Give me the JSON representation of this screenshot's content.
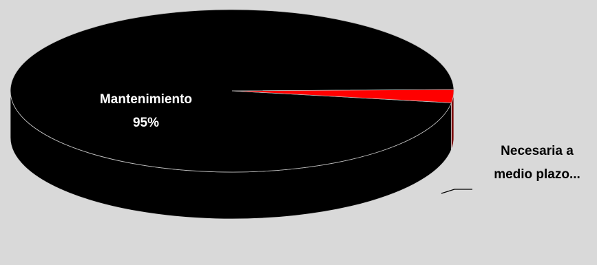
{
  "chart_data": {
    "type": "pie",
    "style": "3d",
    "title": "",
    "series": [
      {
        "values": [
          95,
          5
        ],
        "categories": [
          "Mantenimiento",
          "Necesaria a medio plazo"
        ]
      }
    ],
    "slices": [
      {
        "label": "Mantenimiento",
        "value_label": "95%",
        "value": 95,
        "color": "#000000",
        "side_color": "#000000"
      },
      {
        "label_lines": [
          "Necesaria a",
          "medio plazo..."
        ],
        "value": 5,
        "color": "#ff0000",
        "side_color": "#7a0000"
      }
    ],
    "legend": "none",
    "background": "#d9d9d9"
  }
}
